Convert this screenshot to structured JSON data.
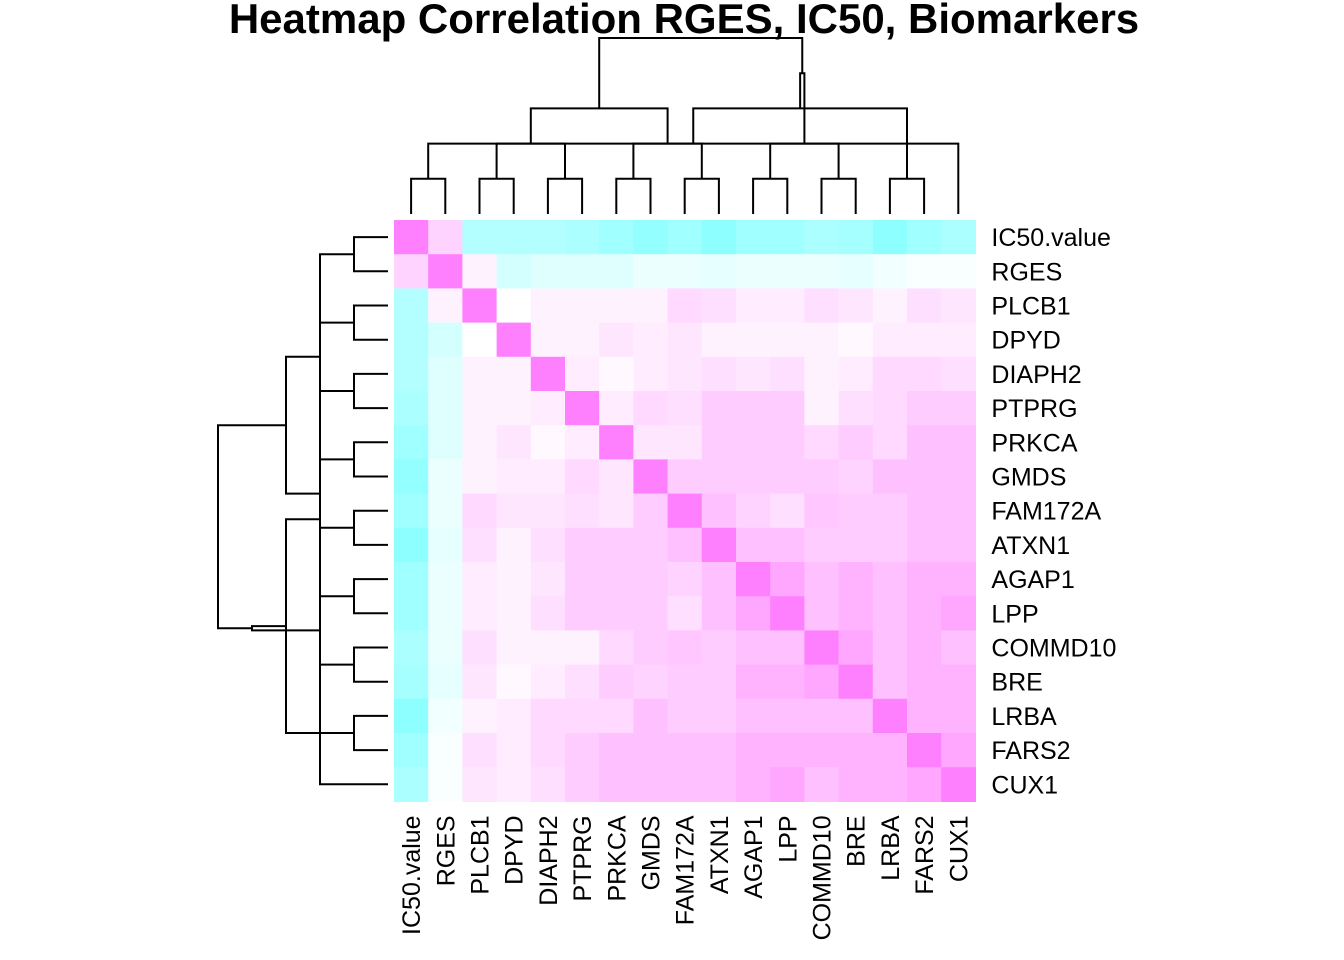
{
  "chart_data": {
    "type": "heatmap",
    "title": "Heatmap Correlation RGES, IC50, Biomarkers",
    "xlabel": "",
    "ylabel": "",
    "labels": [
      "IC50.value",
      "RGES",
      "PLCB1",
      "DPYD",
      "DIAPH2",
      "PTPRG",
      "PRKCA",
      "GMDS",
      "FAM172A",
      "ATXN1",
      "AGAP1",
      "LPP",
      "COMMD10",
      "BRE",
      "LRBA",
      "FARS2",
      "CUX1"
    ],
    "value_range": [
      -1,
      1
    ],
    "color_low": "#80FFFF",
    "color_mid": "#FFFFFF",
    "color_high": "#FF80FF",
    "matrix": [
      [
        1.0,
        0.35,
        -0.6,
        -0.6,
        -0.6,
        -0.65,
        -0.75,
        -0.85,
        -0.75,
        -0.9,
        -0.75,
        -0.75,
        -0.65,
        -0.7,
        -0.9,
        -0.75,
        -0.65
      ],
      [
        0.35,
        1.0,
        0.1,
        -0.35,
        -0.25,
        -0.25,
        -0.25,
        -0.15,
        -0.15,
        -0.2,
        -0.15,
        -0.15,
        -0.15,
        -0.2,
        -0.1,
        -0.05,
        -0.05
      ],
      [
        -0.6,
        0.1,
        1.0,
        0.0,
        0.1,
        0.1,
        0.1,
        0.1,
        0.3,
        0.25,
        0.15,
        0.15,
        0.25,
        0.2,
        0.1,
        0.25,
        0.2
      ],
      [
        -0.6,
        -0.35,
        0.0,
        1.0,
        0.1,
        0.1,
        0.2,
        0.15,
        0.2,
        0.1,
        0.1,
        0.1,
        0.1,
        0.05,
        0.15,
        0.15,
        0.15
      ],
      [
        -0.6,
        -0.25,
        0.1,
        0.1,
        1.0,
        0.15,
        0.05,
        0.15,
        0.2,
        0.25,
        0.2,
        0.25,
        0.1,
        0.15,
        0.3,
        0.3,
        0.25
      ],
      [
        -0.65,
        -0.25,
        0.1,
        0.1,
        0.15,
        1.0,
        0.15,
        0.3,
        0.25,
        0.4,
        0.4,
        0.4,
        0.1,
        0.25,
        0.3,
        0.4,
        0.4
      ],
      [
        -0.75,
        -0.25,
        0.1,
        0.2,
        0.05,
        0.15,
        1.0,
        0.2,
        0.2,
        0.4,
        0.4,
        0.4,
        0.3,
        0.4,
        0.3,
        0.5,
        0.5
      ],
      [
        -0.85,
        -0.15,
        0.1,
        0.15,
        0.15,
        0.3,
        0.2,
        1.0,
        0.4,
        0.4,
        0.4,
        0.4,
        0.4,
        0.35,
        0.5,
        0.5,
        0.5
      ],
      [
        -0.75,
        -0.15,
        0.3,
        0.2,
        0.2,
        0.25,
        0.2,
        0.4,
        1.0,
        0.5,
        0.35,
        0.25,
        0.45,
        0.4,
        0.4,
        0.5,
        0.5
      ],
      [
        -0.9,
        -0.2,
        0.25,
        0.1,
        0.25,
        0.4,
        0.4,
        0.4,
        0.5,
        1.0,
        0.5,
        0.5,
        0.4,
        0.4,
        0.4,
        0.5,
        0.5
      ],
      [
        -0.75,
        -0.15,
        0.15,
        0.1,
        0.2,
        0.4,
        0.4,
        0.4,
        0.35,
        0.5,
        1.0,
        0.7,
        0.5,
        0.6,
        0.5,
        0.6,
        0.6
      ],
      [
        -0.75,
        -0.15,
        0.15,
        0.1,
        0.25,
        0.4,
        0.4,
        0.4,
        0.25,
        0.5,
        0.7,
        1.0,
        0.5,
        0.6,
        0.5,
        0.6,
        0.7
      ],
      [
        -0.65,
        -0.15,
        0.25,
        0.1,
        0.1,
        0.1,
        0.3,
        0.4,
        0.45,
        0.4,
        0.5,
        0.5,
        1.0,
        0.7,
        0.5,
        0.6,
        0.5
      ],
      [
        -0.7,
        -0.2,
        0.2,
        0.05,
        0.15,
        0.25,
        0.4,
        0.35,
        0.4,
        0.4,
        0.6,
        0.6,
        0.7,
        1.0,
        0.5,
        0.6,
        0.6
      ],
      [
        -0.9,
        -0.1,
        0.1,
        0.15,
        0.3,
        0.3,
        0.3,
        0.5,
        0.4,
        0.4,
        0.5,
        0.5,
        0.5,
        0.5,
        1.0,
        0.6,
        0.6
      ],
      [
        -0.75,
        -0.05,
        0.25,
        0.15,
        0.3,
        0.4,
        0.5,
        0.5,
        0.5,
        0.5,
        0.6,
        0.6,
        0.6,
        0.6,
        0.6,
        1.0,
        0.7
      ],
      [
        -0.65,
        -0.05,
        0.2,
        0.15,
        0.25,
        0.4,
        0.5,
        0.5,
        0.5,
        0.5,
        0.6,
        0.7,
        0.5,
        0.6,
        0.6,
        0.7,
        1.0
      ]
    ],
    "dendrogram": [
      [
        0,
        1
      ],
      [
        2,
        3
      ],
      [
        4,
        5
      ],
      [
        6,
        7
      ],
      [
        8,
        9
      ],
      [
        10,
        11
      ],
      [
        12,
        13
      ],
      [
        14,
        15
      ],
      [
        16,
        -1
      ],
      [
        -2,
        -3
      ],
      [
        -4,
        -5
      ],
      [
        -6,
        -7
      ],
      [
        -8,
        -9
      ],
      [
        -10,
        -11
      ],
      [
        -12,
        -13
      ],
      [
        -14,
        -15
      ]
    ]
  }
}
